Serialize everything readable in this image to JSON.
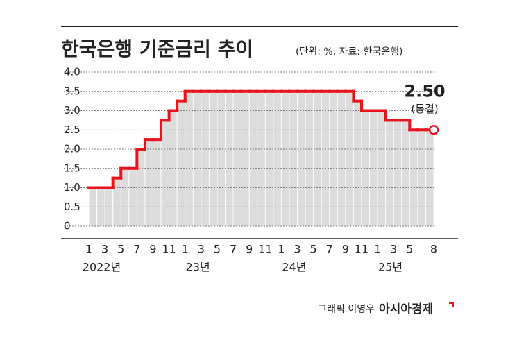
{
  "chart_data": {
    "type": "step",
    "title": "한국은행 기준금리 추이",
    "subtitle": "(단위: %, 자료: 한국은행)",
    "categories": [
      "1",
      null,
      "3",
      null,
      "5",
      null,
      "7",
      null,
      "9",
      null,
      "11",
      null,
      "1",
      null,
      "3",
      null,
      "5",
      null,
      "7",
      null,
      "9",
      null,
      "11",
      null,
      "1",
      null,
      "3",
      null,
      "5",
      null,
      "7",
      null,
      "9",
      null,
      "11",
      null,
      "1",
      null,
      "3",
      null,
      "5",
      null,
      null,
      "8"
    ],
    "year_labels": [
      "2022년",
      "23년",
      "24년",
      "25년"
    ],
    "series": [
      {
        "name": "기준금리",
        "color": "#e8141b",
        "values": [
          1.0,
          1.0,
          1.0,
          1.25,
          1.5,
          1.5,
          2.0,
          2.25,
          2.25,
          2.75,
          3.0,
          3.25,
          3.5,
          3.5,
          3.5,
          3.5,
          3.5,
          3.5,
          3.5,
          3.5,
          3.5,
          3.5,
          3.5,
          3.5,
          3.5,
          3.5,
          3.5,
          3.5,
          3.5,
          3.5,
          3.5,
          3.5,
          3.5,
          3.25,
          3.0,
          3.0,
          3.0,
          2.75,
          2.75,
          2.75,
          2.5,
          2.5,
          2.5,
          2.5
        ],
        "value_labels": [
          null,
          null,
          null,
          null,
          null,
          null,
          null,
          null,
          null,
          null,
          null,
          null,
          null,
          null,
          null,
          null,
          null,
          null,
          null,
          null,
          null,
          null,
          null,
          null,
          null,
          null,
          null,
          null,
          null,
          null,
          null,
          null,
          null,
          null,
          null,
          null,
          null,
          null,
          null,
          null,
          null,
          null,
          null,
          "2.50"
        ]
      }
    ],
    "annotation": "(동결)",
    "ylim": [
      0,
      4
    ],
    "yticks": [
      0,
      0.5,
      {
        "value": 1,
        "label": "1.0"
      },
      1.5,
      {
        "value": 2,
        "label": "2.0"
      },
      2.5,
      {
        "value": 3,
        "label": "3.0"
      },
      3.5,
      {
        "value": 4,
        "label": "4.0"
      }
    ],
    "grid": true,
    "area_color": "#dcdcdc",
    "credit": "그래픽 이영우",
    "source_logo": "아시아경제"
  }
}
